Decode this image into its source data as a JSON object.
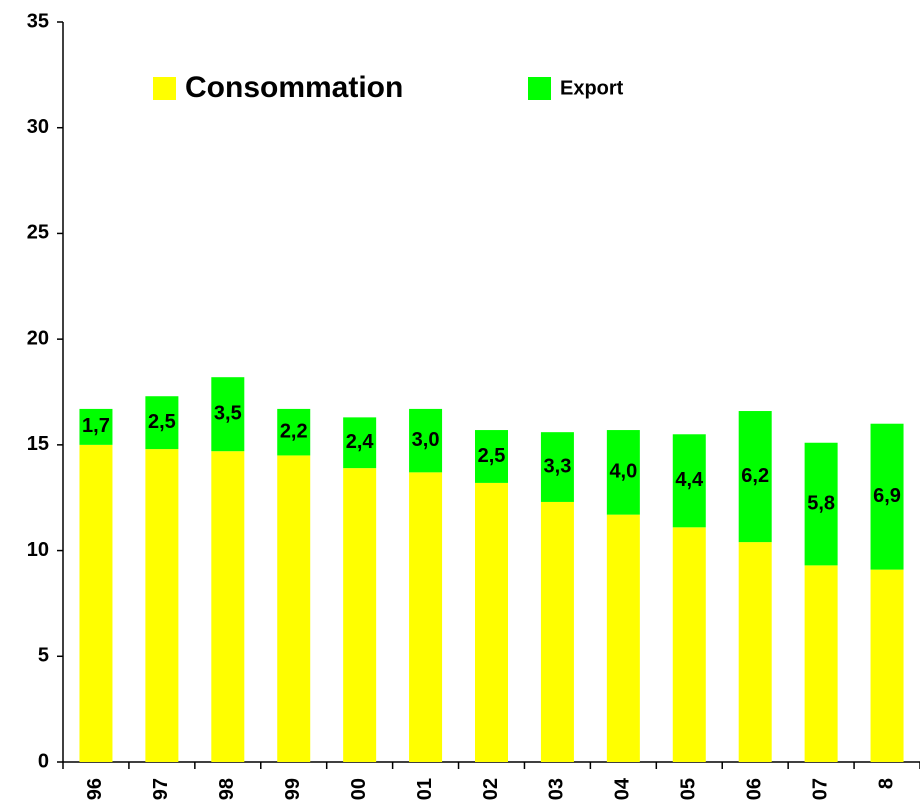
{
  "chart_data": {
    "type": "stacked-bar",
    "categories": [
      "96",
      "97",
      "98",
      "99",
      "00",
      "01",
      "02",
      "03",
      "04",
      "05",
      "06",
      "07",
      "8"
    ],
    "series": [
      {
        "name": "Consommation",
        "color": "#ffff00",
        "values": [
          15.0,
          14.8,
          14.7,
          14.5,
          13.9,
          13.7,
          13.2,
          12.3,
          11.7,
          11.1,
          10.4,
          9.3,
          9.1
        ]
      },
      {
        "name": "Export",
        "color": "#00ff00",
        "values": [
          1.7,
          2.5,
          3.5,
          2.2,
          2.4,
          3.0,
          2.5,
          3.3,
          4.0,
          4.4,
          6.2,
          5.8,
          6.9
        ],
        "value_labels": [
          "1,7",
          "2,5",
          "3,5",
          "2,2",
          "2,4",
          "3,0",
          "2,5",
          "3,3",
          "4,0",
          "4,4",
          "6,2",
          "5,8",
          "6,9"
        ]
      }
    ],
    "ylim": [
      0,
      35
    ],
    "yticks": [
      0,
      5,
      10,
      15,
      20,
      25,
      30,
      35
    ],
    "grid": false
  }
}
